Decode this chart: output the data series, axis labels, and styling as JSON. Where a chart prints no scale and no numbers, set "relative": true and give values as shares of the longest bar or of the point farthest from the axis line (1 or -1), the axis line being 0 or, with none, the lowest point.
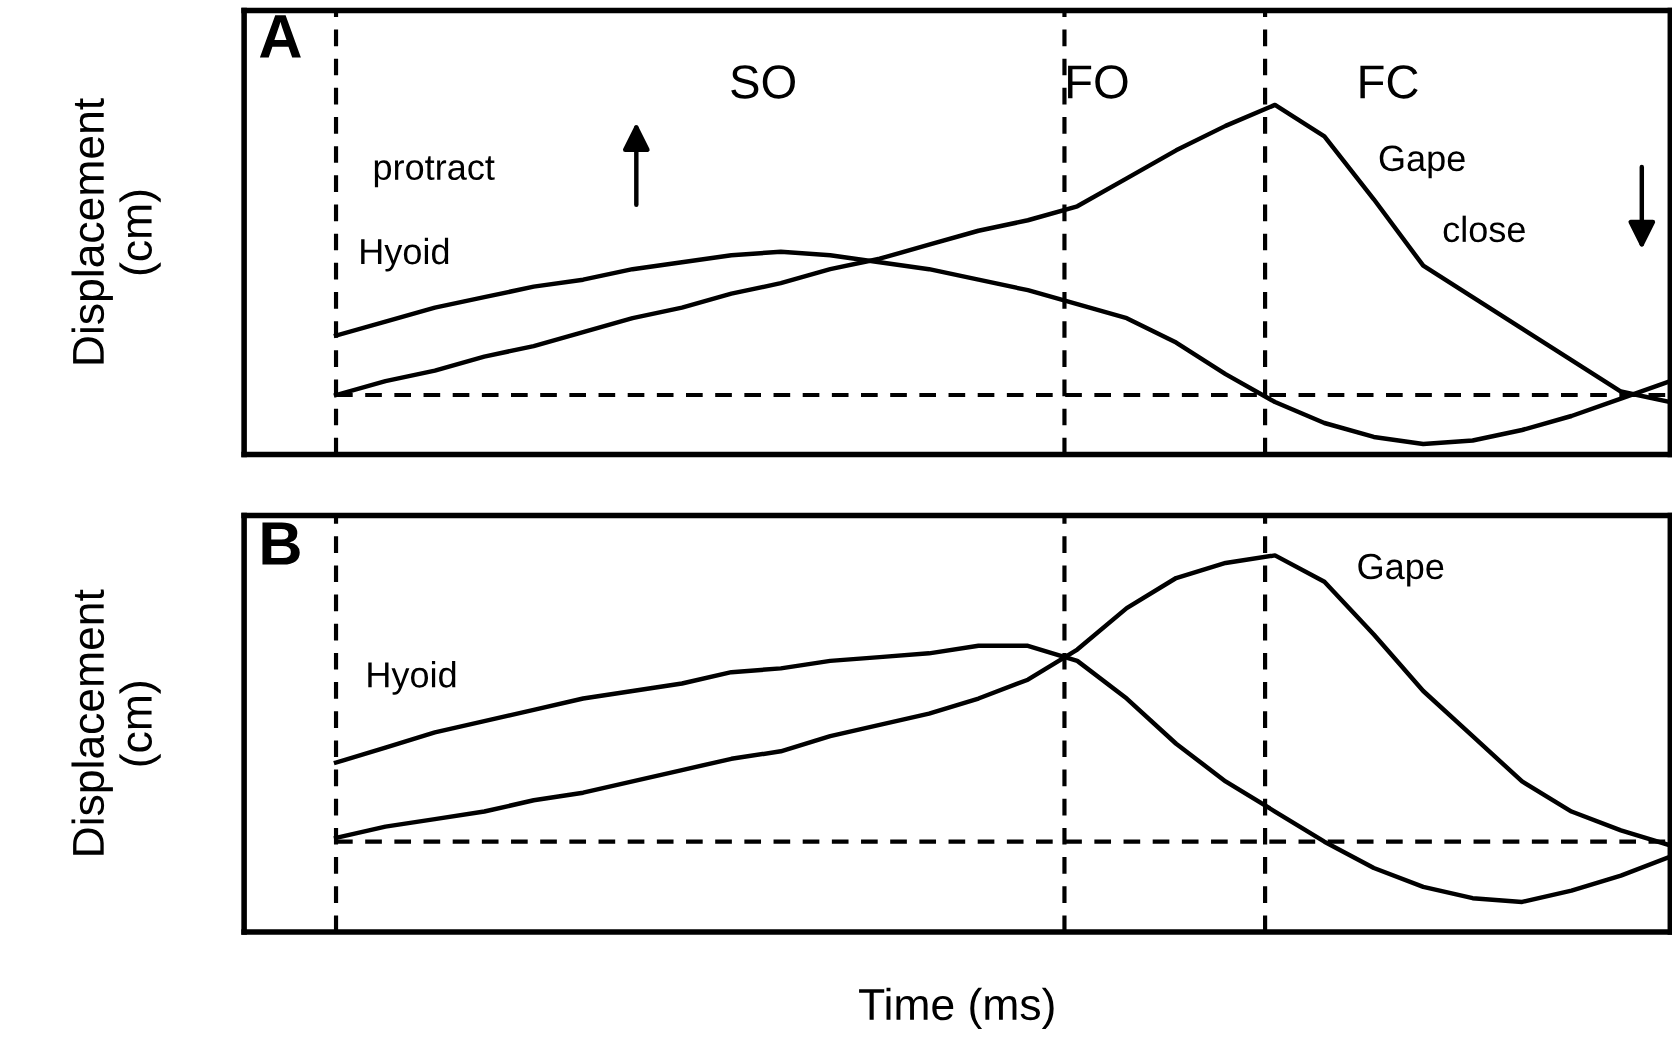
{
  "chart_data": [
    {
      "type": "line",
      "relative": true,
      "ylabel": "Displacement\n(cm)",
      "categories": [
        null,
        null,
        null,
        null,
        null,
        null,
        null,
        null,
        null,
        null,
        null,
        null,
        null,
        null,
        null,
        null,
        null,
        null,
        null,
        null,
        null,
        null,
        null,
        null,
        null,
        null,
        null,
        null
      ],
      "series": [
        {
          "name": "Hyoid",
          "color": "#000000",
          "values": [
            0.34,
            0.38,
            0.42,
            0.45,
            0.48,
            0.5,
            0.53,
            0.55,
            0.57,
            0.58,
            0.57,
            0.55,
            0.53,
            0.5,
            0.47,
            0.43,
            0.39,
            0.32,
            0.23,
            0.15,
            0.09,
            0.05,
            0.03,
            0.04,
            0.07,
            0.11,
            0.16,
            0.21
          ]
        },
        {
          "name": "Gape",
          "color": "#000000",
          "values": [
            0.17,
            0.21,
            0.24,
            0.28,
            0.31,
            0.35,
            0.39,
            0.42,
            0.46,
            0.49,
            0.53,
            0.56,
            0.6,
            0.64,
            0.67,
            0.71,
            0.79,
            0.87,
            0.94,
            1.0,
            0.91,
            0.73,
            0.54,
            0.45,
            0.36,
            0.27,
            0.18,
            0.15
          ]
        }
      ],
      "ref_lines": [
        {
          "axis": "y",
          "value": 0.17,
          "line_style": "dashed"
        }
      ],
      "annotations": [
        "A",
        "SO",
        "FO",
        "FC",
        "protract",
        "close"
      ],
      "line_style": "solid"
    },
    {
      "type": "line",
      "relative": true,
      "ylabel": "Displacement\n(cm)",
      "xlabel": "Time (ms)",
      "categories": [
        null,
        null,
        null,
        null,
        null,
        null,
        null,
        null,
        null,
        null,
        null,
        null,
        null,
        null,
        null,
        null,
        null,
        null,
        null,
        null,
        null,
        null,
        null,
        null,
        null,
        null,
        null,
        null
      ],
      "series": [
        {
          "name": "Hyoid",
          "color": "#000000",
          "values": [
            0.45,
            0.49,
            0.53,
            0.56,
            0.59,
            0.62,
            0.64,
            0.66,
            0.69,
            0.7,
            0.72,
            0.73,
            0.74,
            0.76,
            0.76,
            0.72,
            0.62,
            0.5,
            0.4,
            0.32,
            0.24,
            0.17,
            0.12,
            0.09,
            0.08,
            0.11,
            0.15,
            0.2
          ]
        },
        {
          "name": "Gape",
          "color": "#000000",
          "values": [
            0.25,
            0.28,
            0.3,
            0.32,
            0.35,
            0.37,
            0.4,
            0.43,
            0.46,
            0.48,
            0.52,
            0.55,
            0.58,
            0.62,
            0.67,
            0.75,
            0.86,
            0.94,
            0.98,
            1.0,
            0.93,
            0.79,
            0.64,
            0.52,
            0.4,
            0.32,
            0.27,
            0.23
          ]
        }
      ],
      "ref_lines": [
        {
          "axis": "y",
          "value": 0.24,
          "line_style": "dashed"
        }
      ],
      "annotations": [
        "B"
      ],
      "line_style": "solid"
    }
  ]
}
